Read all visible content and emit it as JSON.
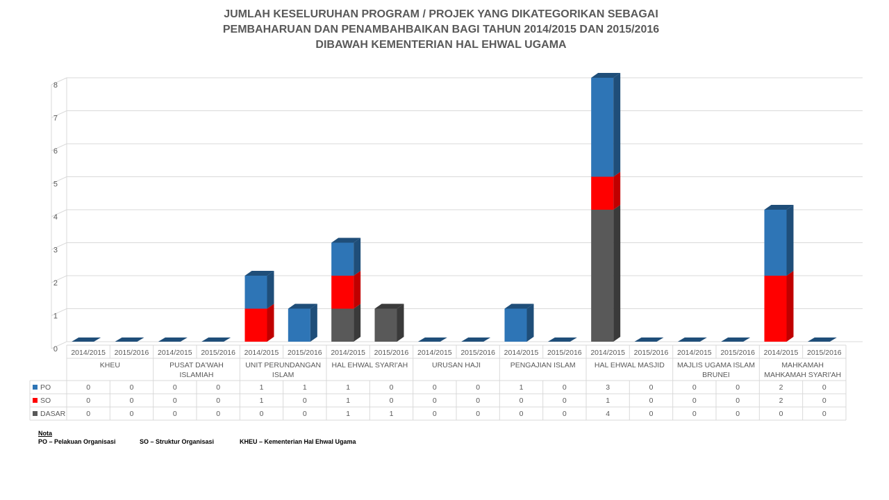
{
  "chart_data": {
    "type": "bar",
    "stacked": true,
    "three_d": true,
    "title": [
      "JUMLAH KESELURUHAN PROGRAM / PROJEK YANG DIKATEGORIKAN SEBAGAI",
      "PEMBAHARUAN DAN PENAMBAHBAIKAN  BAGI TAHUN 2014/2015 DAN 2015/2016",
      "DIBAWAH KEMENTERIAN HAL EHWAL UGAMA"
    ],
    "groups": [
      {
        "name": "KHEU",
        "label_lines": [
          "KHEU"
        ]
      },
      {
        "name": "PUSAT DA'WAH ISLAMIAH",
        "label_lines": [
          "PUSAT DA'WAH",
          "ISLAMIAH"
        ]
      },
      {
        "name": "UNIT PERUNDANGAN ISLAM",
        "label_lines": [
          "UNIT PERUNDANGAN",
          "ISLAM"
        ]
      },
      {
        "name": "HAL EHWAL SYARI'AH",
        "label_lines": [
          "HAL EHWAL SYARI'AH"
        ]
      },
      {
        "name": "URUSAN HAJI",
        "label_lines": [
          "URUSAN HAJI"
        ]
      },
      {
        "name": "PENGAJIAN ISLAM",
        "label_lines": [
          "PENGAJIAN ISLAM"
        ]
      },
      {
        "name": "HAL EHWAL MASJID",
        "label_lines": [
          "HAL EHWAL MASJID"
        ]
      },
      {
        "name": "MAJLIS UGAMA ISLAM BRUNEI",
        "label_lines": [
          "MAJLIS UGAMA ISLAM",
          "BRUNEI"
        ]
      },
      {
        "name": "MAHKAMAH MAHKAMAH SYARI'AH",
        "label_lines": [
          "MAHKAMAH",
          "MAHKAMAH SYARI'AH"
        ]
      }
    ],
    "years": [
      "2014/2015",
      "2015/2016"
    ],
    "series": [
      {
        "name": "PO",
        "color": "#2e75b6",
        "side_color": "#1f4e79",
        "top_color": "#1f4e79",
        "values": [
          0,
          0,
          0,
          0,
          1,
          1,
          1,
          0,
          0,
          0,
          1,
          0,
          3,
          0,
          0,
          0,
          2,
          0
        ]
      },
      {
        "name": "SO",
        "color": "#ff0000",
        "side_color": "#c00000",
        "top_color": "#c00000",
        "values": [
          0,
          0,
          0,
          0,
          1,
          0,
          1,
          0,
          0,
          0,
          0,
          0,
          1,
          0,
          0,
          0,
          2,
          0
        ]
      },
      {
        "name": "DASAR",
        "color": "#595959",
        "side_color": "#3a3a3a",
        "top_color": "#3a3a3a",
        "values": [
          0,
          0,
          0,
          0,
          0,
          0,
          1,
          1,
          0,
          0,
          0,
          0,
          4,
          0,
          0,
          0,
          0,
          0
        ]
      }
    ],
    "stack_order_bottom_to_top": [
      "DASAR",
      "SO",
      "PO"
    ],
    "empty_bar_color": "#1f4e79",
    "yticks": [
      "0",
      "1",
      "2",
      "3",
      "4",
      "5",
      "6",
      "7",
      "8"
    ],
    "ylim": [
      0,
      8
    ],
    "grid": true,
    "legend": "data-table"
  },
  "notes": {
    "heading": "Nota",
    "items": [
      "PO – Pelakuan Organisasi",
      "SO – Struktur Organisasi",
      "KHEU – Kementerian Hal Ehwal Ugama"
    ]
  }
}
